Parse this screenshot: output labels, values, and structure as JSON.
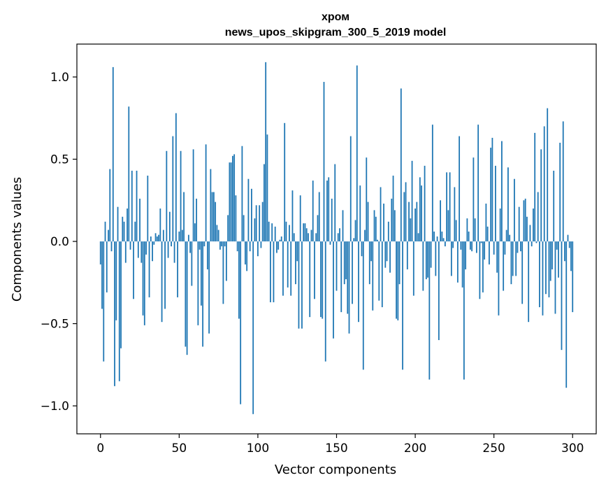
{
  "chart_data": {
    "type": "bar",
    "title": "хром",
    "subtitle": "news_upos_skipgram_300_5_2019 model",
    "xlabel": "Vector components",
    "ylabel": "Components values",
    "xlim": [
      -15,
      315
    ],
    "ylim": [
      -1.17,
      1.2
    ],
    "xticks": [
      0,
      50,
      100,
      150,
      200,
      250,
      300
    ],
    "xtick_labels": [
      "0",
      "50",
      "100",
      "150",
      "200",
      "250",
      "300"
    ],
    "yticks": [
      -1.0,
      -0.5,
      0.0,
      0.5,
      1.0
    ],
    "ytick_labels": [
      "−1.0",
      "−0.5",
      "0.0",
      "0.5",
      "1.0"
    ],
    "bar_color": "#1f77b4",
    "grid": false,
    "values": [
      -0.14,
      -0.41,
      -0.73,
      0.12,
      -0.31,
      0.07,
      0.44,
      -0.06,
      1.06,
      -0.88,
      -0.48,
      0.21,
      -0.85,
      -0.65,
      0.15,
      0.12,
      -0.13,
      0.2,
      0.82,
      -0.05,
      0.43,
      -0.35,
      0.12,
      0.43,
      -0.1,
      0.26,
      -0.13,
      -0.45,
      -0.51,
      -0.08,
      0.4,
      -0.34,
      0.03,
      -0.12,
      -0.02,
      0.05,
      0.03,
      0.04,
      0.2,
      -0.49,
      0.07,
      -0.41,
      0.55,
      -0.1,
      0.18,
      -0.03,
      0.64,
      -0.13,
      0.78,
      -0.34,
      0.06,
      0.55,
      0.07,
      0.3,
      -0.64,
      -0.69,
      0.04,
      -0.07,
      -0.27,
      0.56,
      0.11,
      0.26,
      -0.51,
      -0.05,
      -0.39,
      -0.64,
      -0.03,
      0.59,
      -0.17,
      -0.56,
      0.44,
      0.3,
      0.3,
      0.24,
      0.1,
      0.07,
      -0.05,
      -0.03,
      -0.38,
      -0.03,
      -0.24,
      0.16,
      0.48,
      0.48,
      0.52,
      0.53,
      0.28,
      -0.06,
      -0.47,
      -0.99,
      0.58,
      0.16,
      -0.14,
      -0.18,
      0.38,
      -0.06,
      0.32,
      -1.05,
      0.14,
      0.22,
      -0.09,
      0.22,
      -0.04,
      0.24,
      0.47,
      1.09,
      0.65,
      0.12,
      -0.37,
      0.11,
      -0.37,
      0.09,
      -0.07,
      -0.05,
      0.01,
      0.03,
      -0.33,
      0.72,
      0.12,
      -0.28,
      0.1,
      -0.33,
      0.31,
      0.05,
      -0.26,
      -0.12,
      -0.53,
      0.28,
      -0.53,
      0.11,
      0.11,
      0.08,
      0.05,
      -0.46,
      0.07,
      0.37,
      -0.35,
      0.05,
      0.16,
      0.3,
      -0.46,
      -0.47,
      0.97,
      -0.73,
      0.37,
      0.39,
      -0.02,
      0.26,
      -0.59,
      0.47,
      -0.3,
      0.05,
      0.08,
      -0.43,
      0.19,
      -0.26,
      -0.23,
      -0.44,
      -0.56,
      0.64,
      -0.38,
      0.02,
      0.13,
      1.07,
      -0.49,
      0.34,
      -0.09,
      -0.78,
      0.07,
      0.51,
      0.24,
      -0.26,
      -0.12,
      -0.42,
      0.19,
      0.15,
      0.01,
      -0.36,
      0.33,
      -0.4,
      0.23,
      -0.16,
      -0.12,
      0.12,
      -0.19,
      0.26,
      0.4,
      0.19,
      -0.47,
      -0.48,
      -0.26,
      0.93,
      -0.78,
      0.3,
      0.36,
      -0.17,
      0.24,
      0.14,
      0.49,
      -0.33,
      0.2,
      0.24,
      0.05,
      0.39,
      0.34,
      -0.3,
      0.46,
      -0.23,
      -0.22,
      -0.84,
      -0.16,
      0.71,
      0.06,
      -0.21,
      0.03,
      -0.6,
      0.25,
      0.06,
      0.02,
      -0.03,
      0.42,
      0.19,
      0.42,
      -0.21,
      -0.04,
      0.33,
      0.13,
      -0.25,
      0.64,
      -0.05,
      -0.28,
      -0.84,
      -0.17,
      0.14,
      0.06,
      -0.05,
      -0.06,
      0.51,
      0.14,
      -0.07,
      0.71,
      -0.35,
      -0.01,
      -0.31,
      -0.11,
      0.23,
      0.09,
      -0.14,
      0.57,
      0.63,
      -0.08,
      0.46,
      -0.19,
      -0.45,
      0.2,
      0.61,
      -0.3,
      -0.08,
      0.07,
      0.45,
      0.04,
      -0.26,
      -0.21,
      0.38,
      -0.21,
      -0.07,
      0.21,
      -0.06,
      -0.38,
      0.25,
      0.26,
      0.15,
      -0.49,
      0.1,
      -0.03,
      0.2,
      0.66,
      -0.01,
      0.3,
      -0.4,
      0.56,
      -0.45,
      0.7,
      -0.32,
      0.81,
      -0.34,
      -0.24,
      -0.17,
      0.43,
      -0.44,
      -0.05,
      -0.22,
      0.6,
      -0.66,
      0.73,
      -0.12,
      -0.89,
      0.04,
      -0.04,
      -0.18,
      -0.43
    ]
  }
}
